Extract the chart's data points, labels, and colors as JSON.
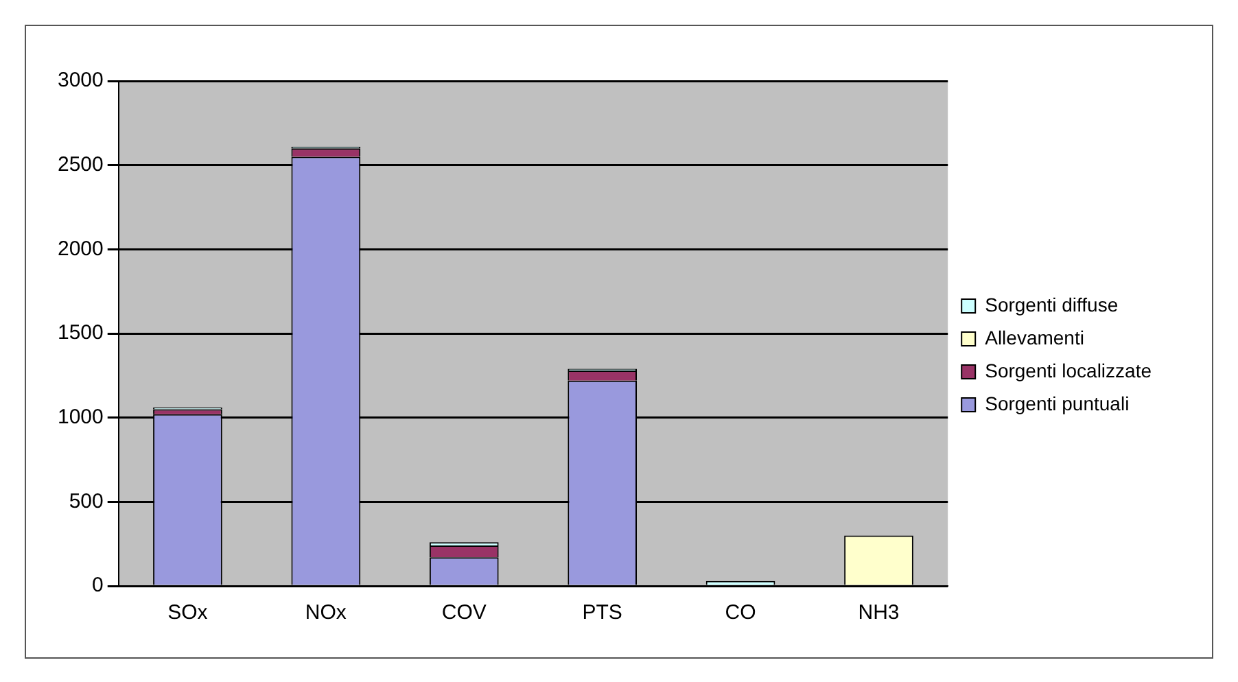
{
  "chart_data": {
    "type": "bar",
    "stacked": true,
    "categories": [
      "SOx",
      "NOx",
      "COV",
      "PTS",
      "CO",
      "NH3"
    ],
    "series": [
      {
        "name": "Sorgenti puntuali",
        "color": "#9999dd",
        "values": [
          1020,
          2550,
          170,
          1220,
          0,
          0
        ]
      },
      {
        "name": "Sorgenti localizzate",
        "color": "#993366",
        "values": [
          30,
          50,
          70,
          60,
          0,
          0
        ]
      },
      {
        "name": "Allevamenti",
        "color": "#ffffcc",
        "values": [
          0,
          0,
          0,
          0,
          0,
          300
        ]
      },
      {
        "name": "Sorgenti diffuse",
        "color": "#ccffff",
        "values": [
          10,
          10,
          20,
          10,
          30,
          0
        ]
      }
    ],
    "ylim": [
      0,
      3000
    ],
    "yticks": [
      0,
      500,
      1000,
      1500,
      2000,
      2500,
      3000
    ],
    "grid": "y",
    "legend": "right"
  }
}
